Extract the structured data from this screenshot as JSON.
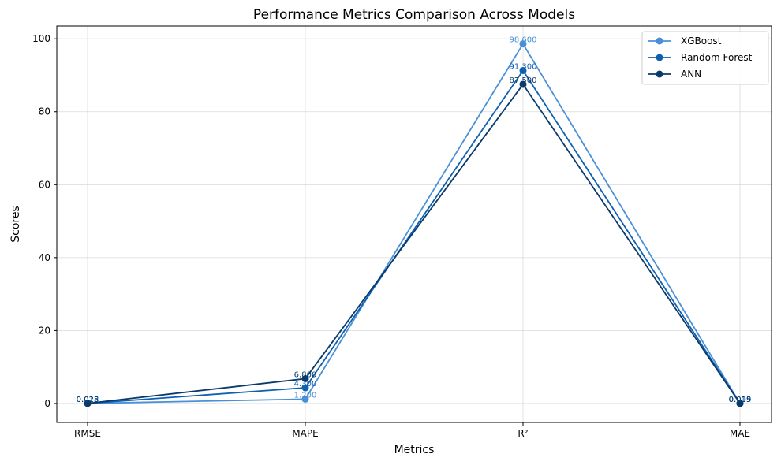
{
  "chart_data": {
    "type": "line",
    "title": "Performance Metrics Comparison Across Models",
    "xlabel": "Metrics",
    "ylabel": "Scores",
    "categories": [
      "RMSE",
      "MAPE",
      "R²",
      "MAE"
    ],
    "ylim": [
      -5.2,
      103.5
    ],
    "yticks": [
      0,
      20,
      40,
      60,
      80,
      100
    ],
    "grid": true,
    "legend_position": "top-right",
    "series": [
      {
        "name": "XGBoost",
        "color": "#4a90d9",
        "values": [
          0.012,
          1.2,
          98.6,
          0.009
        ],
        "labels": [
          "0.012",
          "1.200",
          "98.600",
          "0.009"
        ]
      },
      {
        "name": "Random Forest",
        "color": "#1060b0",
        "values": [
          0.018,
          4.3,
          91.3,
          0.015
        ],
        "labels": [
          "0.018",
          "4.300",
          "91.300",
          "0.015"
        ]
      },
      {
        "name": "ANN",
        "color": "#0a3a6a",
        "values": [
          0.025,
          6.8,
          87.5,
          0.019
        ],
        "labels": [
          "0.025",
          "6.800",
          "87.500",
          "0.019"
        ]
      }
    ]
  }
}
